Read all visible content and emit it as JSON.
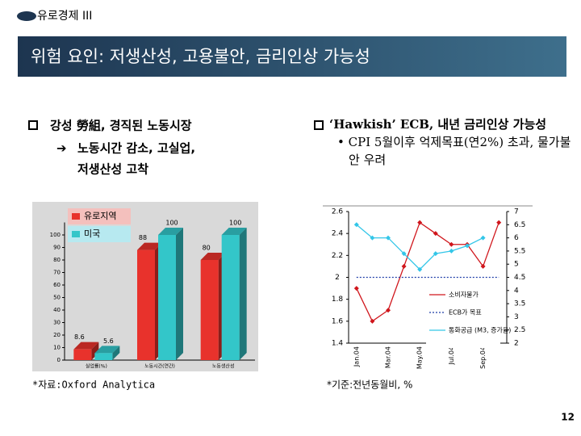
{
  "header": {
    "section": "유로경제 III",
    "title": "위험 요인: 저생산성, 고용불안, 금리인상 가능성"
  },
  "left": {
    "bullet": "강성 勞組, 경직된 노동시장",
    "sub": [
      "노동시간 감소, 고실업,",
      "저생산성 고착"
    ]
  },
  "right": {
    "bullet": "‘Hawkish’ ECB, 내년 금리인상 가능성",
    "sub": "CPI 5월이후 억제목표(연2%) 초과, 물가불안 우려"
  },
  "chart_data": [
    {
      "type": "bar3d",
      "categories": [
        "실업률(%)",
        "노동시간(연간)",
        "노동생산성"
      ],
      "series": [
        {
          "name": "유로지역",
          "color": "#e8322c",
          "values": [
            8.6,
            88,
            80
          ]
        },
        {
          "name": "미국",
          "color": "#33c6c9",
          "values": [
            5.6,
            100,
            100
          ]
        }
      ],
      "ylim": [
        0,
        110
      ],
      "yticks": [
        0,
        10,
        20,
        30,
        40,
        50,
        60,
        70,
        80,
        90,
        100
      ]
    },
    {
      "type": "line",
      "categories": [
        "Jan.04",
        null,
        "Mar.04",
        null,
        "May.04",
        null,
        "Jul.04",
        null,
        "Sep.04",
        null
      ],
      "series": [
        {
          "name": "소비자물가",
          "color": "#d0161c",
          "values": [
            1.9,
            1.6,
            1.7,
            2.1,
            2.5,
            2.4,
            2.3,
            2.3,
            2.1,
            2.5
          ]
        },
        {
          "name": "ECB가 목표",
          "color": "#1f3ea8",
          "values": [
            2,
            2,
            2,
            2,
            2,
            2,
            2,
            2,
            2,
            2
          ]
        },
        {
          "name": "통화공급 (M3, 증가율)",
          "color": "#33c6e8",
          "axis": "y2",
          "values": [
            6.5,
            6.0,
            6.0,
            5.4,
            4.8,
            5.4,
            5.5,
            5.7,
            6.0,
            null
          ]
        }
      ],
      "ylim": [
        1.4,
        2.6
      ],
      "yticks": [
        1.4,
        1.6,
        1.8,
        2,
        2.2,
        2.4,
        2.6
      ],
      "y2lim": [
        2,
        7
      ],
      "y2ticks": [
        2,
        2.5,
        3,
        3.5,
        4,
        4.5,
        5,
        5.5,
        6,
        6.5,
        7
      ]
    }
  ],
  "notes": {
    "left": "*자료:Oxford Analytica",
    "right": "*기준:전년동월비, %"
  },
  "page": "12"
}
